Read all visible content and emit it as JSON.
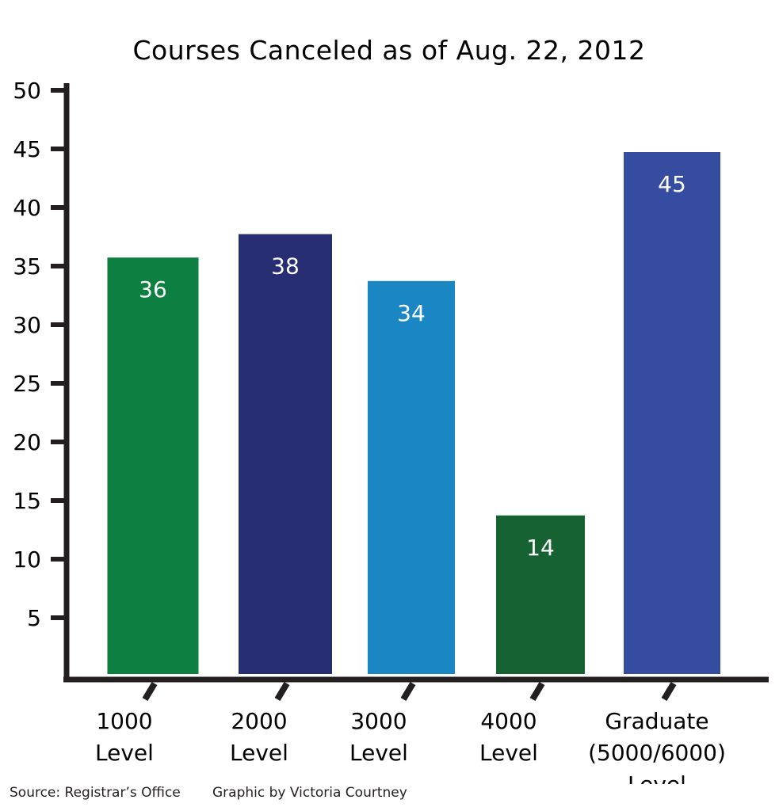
{
  "chart_data": {
    "type": "bar",
    "title": "Courses Canceled as of Aug. 22, 2012",
    "xlabel": "",
    "ylabel": "",
    "ylim": [
      0,
      50
    ],
    "yticks": [
      5,
      10,
      15,
      20,
      25,
      30,
      35,
      40,
      45,
      50
    ],
    "categories": [
      [
        "1000",
        "Level"
      ],
      [
        "2000",
        "Level"
      ],
      [
        "3000",
        "Level"
      ],
      [
        "4000",
        "Level"
      ],
      [
        "Graduate",
        "(5000/6000)",
        "Level"
      ]
    ],
    "values": [
      36,
      38,
      34,
      14,
      45
    ],
    "value_labels": [
      "36",
      "38",
      "34",
      "14",
      "45"
    ],
    "colors": [
      "#0d7f40",
      "#262d73",
      "#1a86c4",
      "#176233",
      "#364ca1"
    ],
    "grid": false,
    "legend": "none"
  },
  "footer": {
    "source": "Source: Registrar’s Office",
    "credit": "Graphic by Victoria Courtney"
  }
}
